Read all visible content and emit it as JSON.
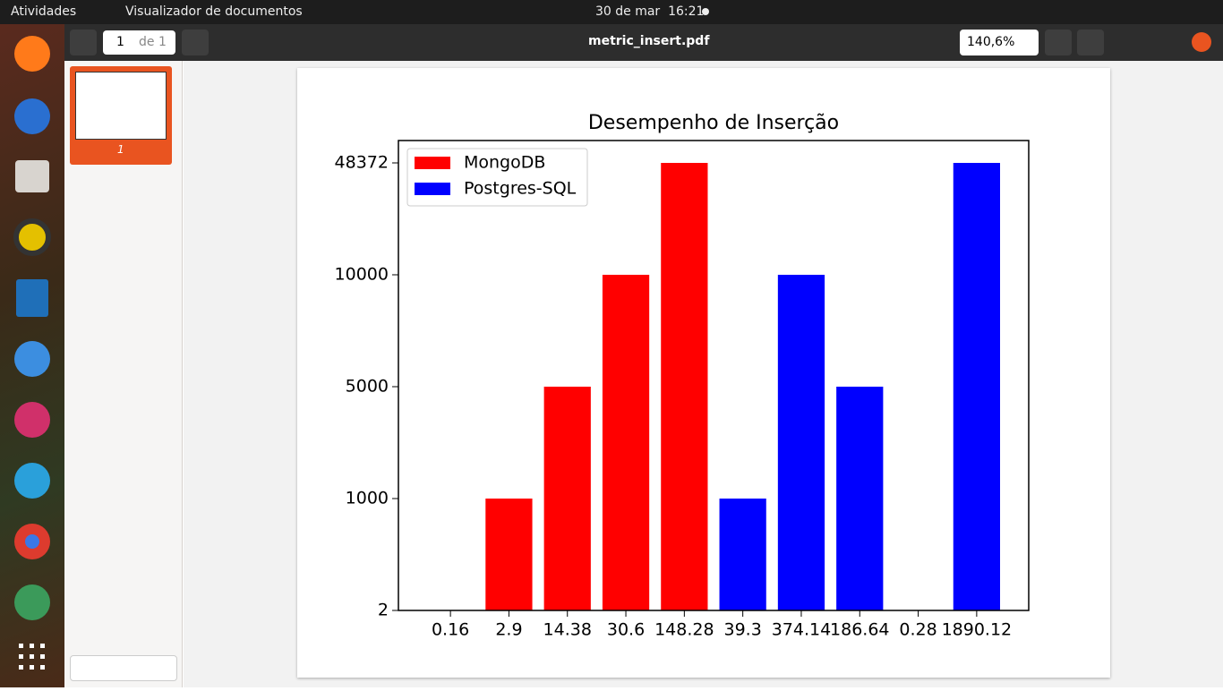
{
  "top_bar": {
    "activities": "Atividades",
    "app_menu": "Visualizador de documentos",
    "clock": "30 de mar  16:21"
  },
  "viewer": {
    "page_number": "1",
    "page_count": "de 1",
    "file_name": "metric_insert.pdf",
    "zoom": "140,6%",
    "thumbnail_label": "1"
  },
  "chart_data": {
    "type": "bar",
    "title": "Desempenho de Inserção",
    "categories": [
      "0.16",
      "2.9",
      "14.38",
      "30.6",
      "148.28",
      "39.3",
      "374.14",
      "186.64",
      "0.28",
      "1890.12"
    ],
    "series": [
      {
        "name": "MongoDB",
        "color": "#ff0000",
        "values": [
          2,
          1000,
          5000,
          10000,
          48372,
          null,
          null,
          null,
          null,
          null
        ]
      },
      {
        "name": "Postgres-SQL",
        "color": "#0000ff",
        "values": [
          null,
          null,
          null,
          null,
          null,
          1000,
          10000,
          5000,
          2,
          48372
        ]
      }
    ],
    "y_scale": "categorical",
    "yticks": [
      2,
      1000,
      5000,
      10000,
      48372
    ],
    "legend": "upper left"
  }
}
